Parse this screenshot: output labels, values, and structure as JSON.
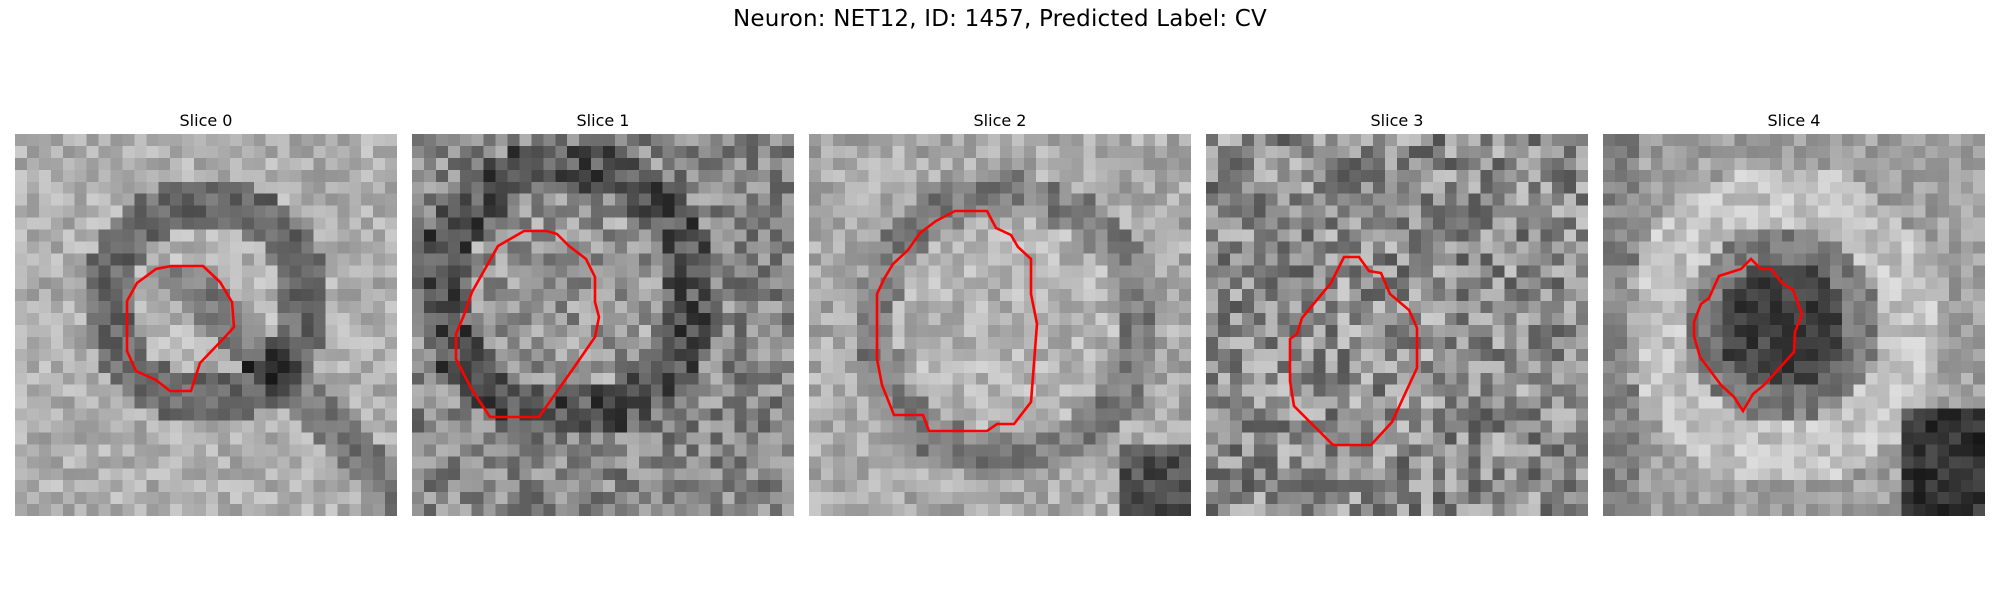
{
  "figure": {
    "title": "Neuron: NET12, ID: 1457, Predicted Label: CV"
  },
  "panels": [
    {
      "title": "Slice 0",
      "texture": {
        "seed": 11,
        "base": 175,
        "noise": 30
      },
      "contour_color": "#ff0000"
    },
    {
      "title": "Slice 1",
      "texture": {
        "seed": 23,
        "base": 135,
        "noise": 48
      },
      "contour_color": "#ff0000"
    },
    {
      "title": "Slice 2",
      "texture": {
        "seed": 37,
        "base": 170,
        "noise": 32
      },
      "contour_color": "#ff0000"
    },
    {
      "title": "Slice 3",
      "texture": {
        "seed": 41,
        "base": 140,
        "noise": 60
      },
      "contour_color": "#ff0000"
    },
    {
      "title": "Slice 4",
      "texture": {
        "seed": 53,
        "base": 160,
        "noise": 28
      },
      "contour_color": "#ff0000"
    }
  ]
}
